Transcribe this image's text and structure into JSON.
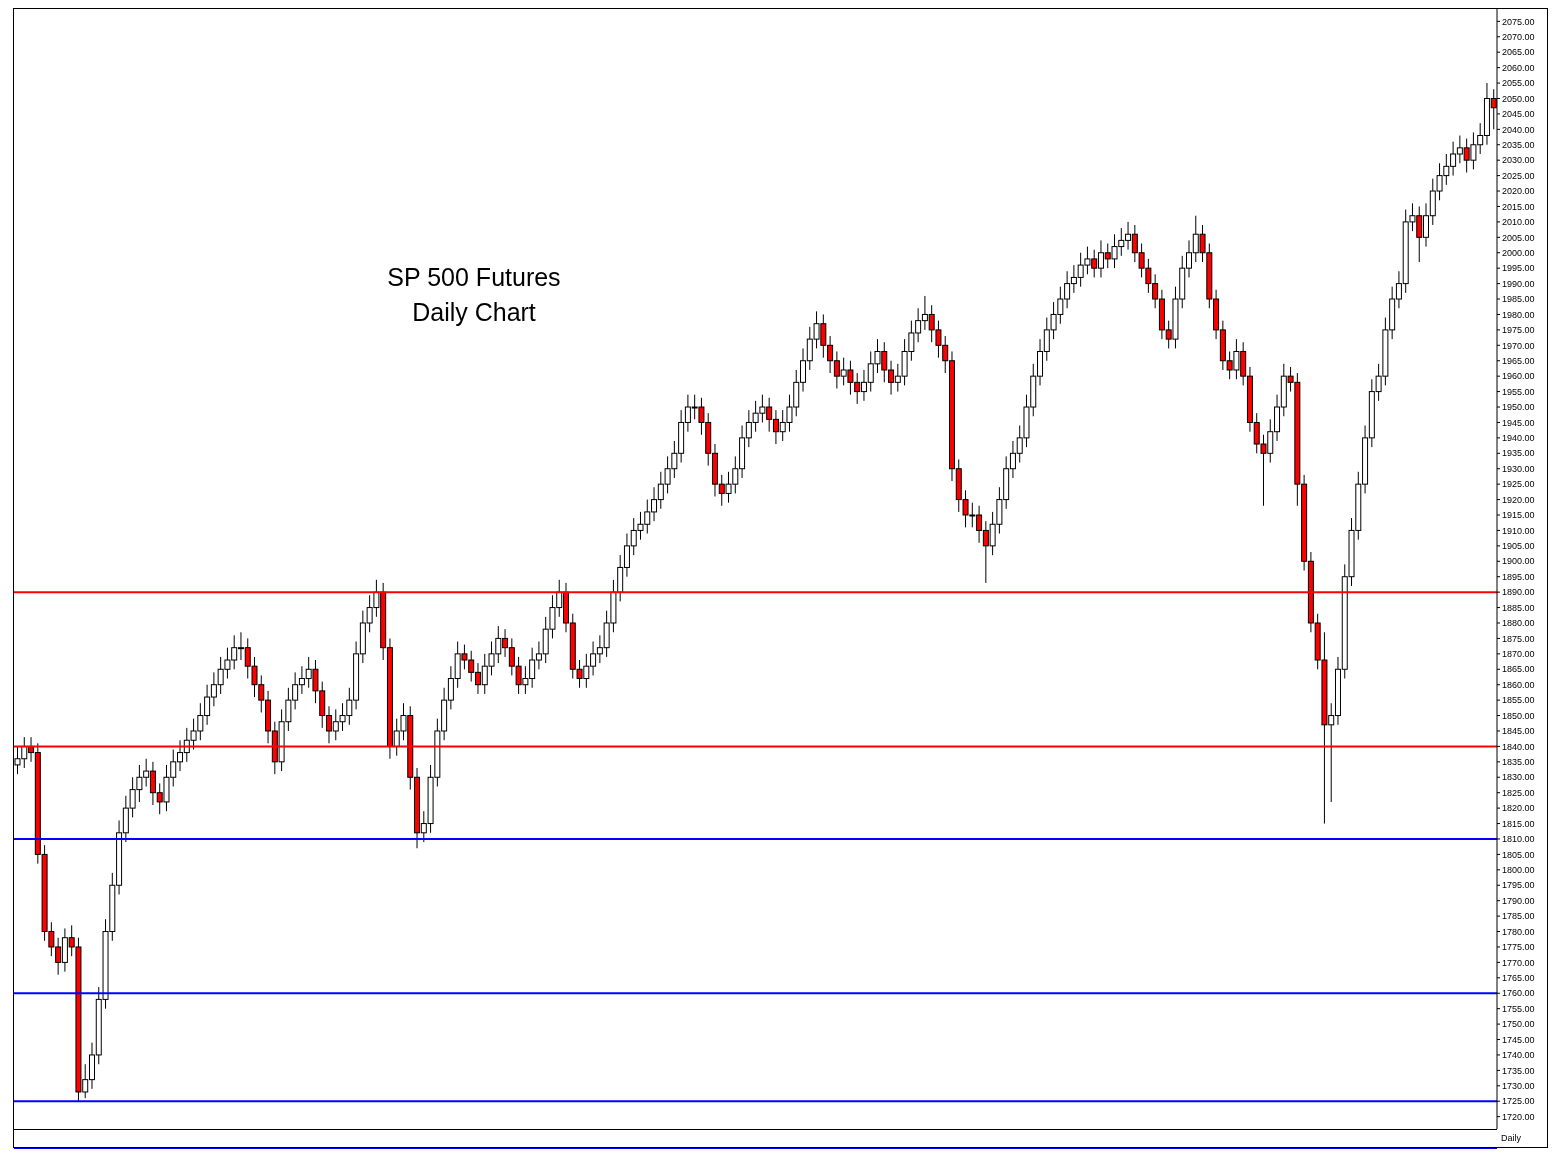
{
  "chart_data": {
    "type": "candlestick",
    "title": "SP 500 Futures",
    "subtitle": "Daily Chart",
    "annotations": [
      "Daily"
    ],
    "tick_labels": "y",
    "colors": [
      "#ffffff",
      "#ffffff",
      "#ff0000",
      "#ff0000",
      "#ff0000",
      "#ff0000",
      "#ff0000",
      "#ffffff",
      "#ff0000",
      "#ff0000",
      "#ffffff",
      "#ffffff",
      "#ffffff",
      "#ffffff",
      "#ffffff",
      "#ffffff",
      "#ffffff",
      "#ffffff",
      "#ffffff",
      "#ffffff",
      "#ff0000",
      "#ff0000",
      "#ffffff",
      "#ffffff",
      "#ffffff",
      "#ffffff",
      "#ffffff",
      "#ffffff",
      "#ffffff",
      "#ffffff",
      "#ffffff",
      "#ffffff",
      "#ffffff",
      "#ffffff",
      "#ff0000",
      "#ff0000",
      "#ff0000",
      "#ff0000",
      "#ff0000",
      "#ffffff",
      "#ffffff",
      "#ffffff",
      "#ffffff",
      "#ffffff",
      "#ff0000",
      "#ff0000",
      "#ff0000",
      "#ffffff",
      "#ffffff",
      "#ffffff",
      "#ffffff",
      "#ffffff",
      "#ffffff",
      "#ffffff",
      "#ff0000",
      "#ff0000",
      "#ffffff",
      "#ffffff",
      "#ff0000",
      "#ff0000",
      "#ffffff",
      "#ffffff",
      "#ffffff",
      "#ffffff",
      "#ffffff",
      "#ffffff",
      "#ff0000",
      "#ff0000",
      "#ff0000",
      "#ffffff",
      "#ffffff",
      "#ffffff",
      "#ff0000",
      "#ff0000",
      "#ff0000",
      "#ffffff",
      "#ffffff",
      "#ffffff",
      "#ffffff",
      "#ffffff",
      "#ffffff",
      "#ff0000",
      "#ff0000",
      "#ff0000",
      "#ffffff",
      "#ffffff",
      "#ffffff",
      "#ffffff",
      "#ffffff",
      "#ffffff",
      "#ffffff",
      "#ffffff",
      "#ffffff",
      "#ffffff",
      "#ffffff",
      "#ffffff",
      "#ffffff",
      "#ffffff",
      "#ffffff",
      "#ffffff",
      "#ffffff",
      "#ff0000",
      "#ff0000",
      "#ff0000",
      "#ff0000",
      "#ffffff",
      "#ffffff",
      "#ffffff",
      "#ffffff",
      "#ffffff",
      "#ffffff",
      "#ff0000",
      "#ff0000",
      "#ffffff",
      "#ffffff",
      "#ffffff",
      "#ffffff",
      "#ffffff",
      "#ffffff",
      "#ff0000",
      "#ff0000",
      "#ff0000",
      "#ffffff",
      "#ff0000",
      "#ff0000",
      "#ffffff",
      "#ffffff",
      "#ffffff",
      "#ff0000",
      "#ff0000",
      "#ffffff",
      "#ffffff",
      "#ffffff",
      "#ffffff",
      "#ffffff",
      "#ff0000",
      "#ff0000",
      "#ff0000",
      "#ff0000",
      "#ff0000",
      "#ff0000",
      "#ffffff",
      "#ff0000",
      "#ff0000",
      "#ffffff",
      "#ffffff",
      "#ffffff",
      "#ffffff",
      "#ffffff",
      "#ffffff",
      "#ffffff",
      "#ffffff",
      "#ffffff",
      "#ffffff",
      "#ffffff",
      "#ffffff",
      "#ffffff",
      "#ffffff",
      "#ffffff",
      "#ff0000",
      "#ffffff",
      "#ff0000",
      "#ffffff",
      "#ffffff",
      "#ffffff",
      "#ff0000",
      "#ff0000",
      "#ff0000",
      "#ff0000",
      "#ff0000",
      "#ff0000",
      "#ffffff",
      "#ffffff",
      "#ffffff",
      "#ffffff",
      "#ff0000",
      "#ff0000",
      "#ff0000",
      "#ff0000",
      "#ff0000",
      "#ffffff",
      "#ff0000",
      "#ff0000",
      "#ff0000",
      "#ff0000",
      "#ffffff",
      "#ffffff",
      "#ffffff",
      "#ff0000",
      "#ff0000",
      "#ff0000",
      "#ff0000",
      "#ff0000",
      "#ff0000",
      "#ffffff",
      "#ffffff",
      "#ffffff",
      "#ffffff",
      "#ffffff",
      "#ffffff",
      "#ffffff",
      "#ffffff",
      "#ffffff",
      "#ffffff",
      "#ffffff",
      "#ffffff",
      "#ffffff",
      "#ff0000",
      "#ffffff",
      "#ffffff",
      "#ffffff",
      "#ffffff",
      "#ffffff",
      "#ffffff",
      "#ff0000",
      "#ffffff",
      "#ffffff",
      "#ffffff",
      "#ff0000"
    ],
    "categories": [
      null,
      null,
      null,
      null,
      null,
      null,
      null,
      null,
      null,
      null,
      null,
      null,
      null,
      null,
      null,
      null,
      null,
      null,
      null,
      null,
      null,
      null,
      null,
      null,
      null,
      null,
      null,
      null,
      null,
      null,
      null,
      null,
      null,
      null,
      null,
      null,
      null,
      null,
      null,
      null,
      null,
      null,
      null,
      null,
      null,
      null,
      null,
      null,
      null,
      null,
      null,
      null,
      null,
      null,
      null,
      null,
      null,
      null,
      null,
      null,
      null,
      null,
      null,
      null,
      null,
      null,
      null,
      null,
      null,
      null,
      null,
      null,
      null,
      null,
      null,
      null,
      null,
      null,
      null,
      null,
      null,
      null,
      null,
      null,
      null,
      null,
      null,
      null,
      null,
      null,
      null,
      null,
      null,
      null,
      null,
      null,
      null,
      null,
      null,
      null,
      null,
      null,
      null,
      null,
      null,
      null,
      null,
      null,
      null,
      null,
      null,
      null,
      null,
      null,
      null,
      null,
      null,
      null,
      null,
      null,
      null,
      null,
      null,
      null,
      null,
      null,
      null,
      null,
      null,
      null,
      null,
      null,
      null,
      null,
      null,
      null,
      null,
      null,
      null,
      null,
      null,
      null,
      null,
      null,
      null,
      null,
      null,
      null,
      null,
      null,
      null,
      null,
      null,
      null,
      null,
      null,
      null,
      null,
      null,
      null,
      null,
      null,
      null,
      null,
      null,
      null,
      null,
      null,
      null,
      null,
      null,
      null,
      null,
      null,
      null,
      null,
      null,
      null,
      null,
      null,
      null,
      null,
      null,
      null,
      null,
      null,
      null,
      null,
      null,
      null,
      null,
      null,
      null,
      null,
      null,
      null,
      null,
      null,
      null,
      null,
      null,
      null,
      null,
      null,
      null,
      null,
      null,
      null,
      null,
      null,
      null,
      null,
      null,
      null,
      null,
      null,
      null,
      null,
      null
    ],
    "ohlc": [
      [
        1834,
        1840,
        1831,
        1836
      ],
      [
        1836,
        1843,
        1833,
        1840
      ],
      [
        1840,
        1843,
        1835,
        1838
      ],
      [
        1838,
        1841,
        1802,
        1805
      ],
      [
        1805,
        1808,
        1777,
        1780
      ],
      [
        1780,
        1783,
        1772,
        1775
      ],
      [
        1775,
        1778,
        1766,
        1770
      ],
      [
        1770,
        1781,
        1767,
        1778
      ],
      [
        1778,
        1782,
        1772,
        1775
      ],
      [
        1775,
        1778,
        1725,
        1728
      ],
      [
        1728,
        1737,
        1726,
        1732
      ],
      [
        1732,
        1744,
        1729,
        1740
      ],
      [
        1740,
        1762,
        1737,
        1758
      ],
      [
        1758,
        1784,
        1755,
        1780
      ],
      [
        1780,
        1799,
        1777,
        1795
      ],
      [
        1795,
        1816,
        1792,
        1812
      ],
      [
        1812,
        1824,
        1809,
        1820
      ],
      [
        1820,
        1830,
        1817,
        1826
      ],
      [
        1826,
        1834,
        1822,
        1830
      ],
      [
        1830,
        1836,
        1827,
        1832
      ],
      [
        1832,
        1835,
        1821,
        1825
      ],
      [
        1825,
        1828,
        1818,
        1822
      ],
      [
        1822,
        1834,
        1819,
        1830
      ],
      [
        1830,
        1839,
        1827,
        1835
      ],
      [
        1835,
        1842,
        1832,
        1838
      ],
      [
        1838,
        1846,
        1835,
        1842
      ],
      [
        1842,
        1849,
        1839,
        1845
      ],
      [
        1845,
        1854,
        1842,
        1850
      ],
      [
        1850,
        1860,
        1847,
        1856
      ],
      [
        1856,
        1864,
        1853,
        1860
      ],
      [
        1860,
        1869,
        1857,
        1865
      ],
      [
        1865,
        1872,
        1862,
        1868
      ],
      [
        1868,
        1876,
        1865,
        1872
      ],
      [
        1872,
        1877,
        1868,
        1872
      ],
      [
        1872,
        1875,
        1862,
        1866
      ],
      [
        1866,
        1869,
        1856,
        1860
      ],
      [
        1860,
        1863,
        1851,
        1855
      ],
      [
        1855,
        1858,
        1841,
        1845
      ],
      [
        1845,
        1848,
        1831,
        1835
      ],
      [
        1835,
        1852,
        1832,
        1848
      ],
      [
        1848,
        1859,
        1845,
        1855
      ],
      [
        1855,
        1864,
        1852,
        1860
      ],
      [
        1860,
        1866,
        1857,
        1862
      ],
      [
        1862,
        1869,
        1859,
        1865
      ],
      [
        1865,
        1868,
        1854,
        1858
      ],
      [
        1858,
        1861,
        1846,
        1850
      ],
      [
        1850,
        1853,
        1841,
        1845
      ],
      [
        1845,
        1852,
        1842,
        1848
      ],
      [
        1848,
        1854,
        1845,
        1850
      ],
      [
        1850,
        1859,
        1847,
        1855
      ],
      [
        1855,
        1874,
        1852,
        1870
      ],
      [
        1870,
        1884,
        1867,
        1880
      ],
      [
        1880,
        1889,
        1877,
        1885
      ],
      [
        1885,
        1894,
        1882,
        1890
      ],
      [
        1890,
        1893,
        1868,
        1872
      ],
      [
        1872,
        1875,
        1836,
        1840
      ],
      [
        1840,
        1849,
        1837,
        1845
      ],
      [
        1845,
        1854,
        1842,
        1850
      ],
      [
        1850,
        1853,
        1826,
        1830
      ],
      [
        1830,
        1833,
        1807,
        1812
      ],
      [
        1812,
        1819,
        1809,
        1815
      ],
      [
        1815,
        1834,
        1812,
        1830
      ],
      [
        1830,
        1849,
        1827,
        1845
      ],
      [
        1845,
        1859,
        1842,
        1855
      ],
      [
        1855,
        1866,
        1852,
        1862
      ],
      [
        1862,
        1874,
        1859,
        1870
      ],
      [
        1870,
        1873,
        1865,
        1868
      ],
      [
        1868,
        1871,
        1861,
        1864
      ],
      [
        1864,
        1867,
        1857,
        1860
      ],
      [
        1860,
        1870,
        1857,
        1866
      ],
      [
        1866,
        1874,
        1863,
        1870
      ],
      [
        1870,
        1879,
        1867,
        1875
      ],
      [
        1875,
        1878,
        1869,
        1872
      ],
      [
        1872,
        1875,
        1863,
        1866
      ],
      [
        1866,
        1869,
        1857,
        1860
      ],
      [
        1860,
        1866,
        1857,
        1862
      ],
      [
        1862,
        1872,
        1859,
        1868
      ],
      [
        1868,
        1874,
        1865,
        1870
      ],
      [
        1870,
        1882,
        1867,
        1878
      ],
      [
        1878,
        1889,
        1875,
        1885
      ],
      [
        1885,
        1894,
        1882,
        1890
      ],
      [
        1890,
        1893,
        1877,
        1880
      ],
      [
        1880,
        1883,
        1862,
        1865
      ],
      [
        1865,
        1868,
        1859,
        1862
      ],
      [
        1862,
        1870,
        1859,
        1866
      ],
      [
        1866,
        1874,
        1863,
        1870
      ],
      [
        1870,
        1876,
        1867,
        1872
      ],
      [
        1872,
        1884,
        1869,
        1880
      ],
      [
        1880,
        1894,
        1877,
        1890
      ],
      [
        1890,
        1902,
        1887,
        1898
      ],
      [
        1898,
        1909,
        1895,
        1905
      ],
      [
        1905,
        1914,
        1902,
        1910
      ],
      [
        1910,
        1916,
        1907,
        1912
      ],
      [
        1912,
        1920,
        1909,
        1916
      ],
      [
        1916,
        1924,
        1913,
        1920
      ],
      [
        1920,
        1929,
        1917,
        1925
      ],
      [
        1925,
        1934,
        1922,
        1930
      ],
      [
        1930,
        1939,
        1927,
        1935
      ],
      [
        1935,
        1949,
        1932,
        1945
      ],
      [
        1945,
        1954,
        1942,
        1950
      ],
      [
        1950,
        1954,
        1946,
        1950
      ],
      [
        1950,
        1953,
        1941,
        1945
      ],
      [
        1945,
        1948,
        1931,
        1935
      ],
      [
        1935,
        1938,
        1921,
        1925
      ],
      [
        1925,
        1928,
        1918,
        1922
      ],
      [
        1922,
        1929,
        1919,
        1925
      ],
      [
        1925,
        1934,
        1922,
        1930
      ],
      [
        1930,
        1944,
        1927,
        1940
      ],
      [
        1940,
        1949,
        1937,
        1945
      ],
      [
        1945,
        1952,
        1942,
        1948
      ],
      [
        1948,
        1954,
        1945,
        1950
      ],
      [
        1950,
        1953,
        1942,
        1946
      ],
      [
        1946,
        1949,
        1938,
        1942
      ],
      [
        1942,
        1949,
        1939,
        1945
      ],
      [
        1945,
        1954,
        1942,
        1950
      ],
      [
        1950,
        1962,
        1947,
        1958
      ],
      [
        1958,
        1969,
        1955,
        1965
      ],
      [
        1965,
        1976,
        1962,
        1972
      ],
      [
        1972,
        1981,
        1969,
        1977
      ],
      [
        1977,
        1980,
        1966,
        1970
      ],
      [
        1970,
        1973,
        1961,
        1965
      ],
      [
        1965,
        1968,
        1956,
        1960
      ],
      [
        1960,
        1966,
        1957,
        1962
      ],
      [
        1962,
        1965,
        1954,
        1958
      ],
      [
        1958,
        1961,
        1951,
        1955
      ],
      [
        1955,
        1962,
        1952,
        1958
      ],
      [
        1958,
        1968,
        1955,
        1964
      ],
      [
        1964,
        1972,
        1961,
        1968
      ],
      [
        1968,
        1971,
        1958,
        1962
      ],
      [
        1962,
        1965,
        1954,
        1958
      ],
      [
        1958,
        1964,
        1955,
        1960
      ],
      [
        1960,
        1972,
        1957,
        1968
      ],
      [
        1968,
        1978,
        1965,
        1974
      ],
      [
        1974,
        1982,
        1971,
        1978
      ],
      [
        1978,
        1986,
        1975,
        1980
      ],
      [
        1980,
        1983,
        1971,
        1975
      ],
      [
        1975,
        1978,
        1966,
        1970
      ],
      [
        1970,
        1973,
        1961,
        1965
      ],
      [
        1965,
        1968,
        1926,
        1930
      ],
      [
        1930,
        1933,
        1916,
        1920
      ],
      [
        1920,
        1923,
        1911,
        1915
      ],
      [
        1915,
        1919,
        1911,
        1915
      ],
      [
        1915,
        1918,
        1906,
        1910
      ],
      [
        1910,
        1913,
        1893,
        1905
      ],
      [
        1905,
        1916,
        1902,
        1912
      ],
      [
        1912,
        1924,
        1909,
        1920
      ],
      [
        1920,
        1934,
        1917,
        1930
      ],
      [
        1930,
        1939,
        1927,
        1935
      ],
      [
        1935,
        1944,
        1932,
        1940
      ],
      [
        1940,
        1954,
        1937,
        1950
      ],
      [
        1950,
        1964,
        1947,
        1960
      ],
      [
        1960,
        1972,
        1957,
        1968
      ],
      [
        1968,
        1979,
        1965,
        1975
      ],
      [
        1975,
        1984,
        1972,
        1980
      ],
      [
        1980,
        1989,
        1977,
        1985
      ],
      [
        1985,
        1994,
        1982,
        1990
      ],
      [
        1990,
        1996,
        1987,
        1992
      ],
      [
        1992,
        2000,
        1989,
        1996
      ],
      [
        1996,
        2002,
        1993,
        1998
      ],
      [
        1998,
        2001,
        1992,
        1995
      ],
      [
        1995,
        2004,
        1992,
        2000
      ],
      [
        2000,
        2003,
        1995,
        1998
      ],
      [
        1998,
        2006,
        1995,
        2002
      ],
      [
        2002,
        2008,
        1999,
        2004
      ],
      [
        2004,
        2010,
        2001,
        2006
      ],
      [
        2006,
        2009,
        1997,
        2000
      ],
      [
        2000,
        2003,
        1992,
        1995
      ],
      [
        1995,
        1998,
        1987,
        1990
      ],
      [
        1990,
        1993,
        1982,
        1985
      ],
      [
        1985,
        1988,
        1972,
        1975
      ],
      [
        1975,
        1978,
        1969,
        1972
      ],
      [
        1972,
        1989,
        1969,
        1985
      ],
      [
        1985,
        1999,
        1982,
        1995
      ],
      [
        1995,
        2004,
        1992,
        2000
      ],
      [
        2000,
        2012,
        1997,
        2006
      ],
      [
        2006,
        2009,
        1997,
        2000
      ],
      [
        2000,
        2003,
        1982,
        1985
      ],
      [
        1985,
        1988,
        1972,
        1975
      ],
      [
        1975,
        1978,
        1962,
        1965
      ],
      [
        1965,
        1968,
        1959,
        1962
      ],
      [
        1962,
        1972,
        1959,
        1968
      ],
      [
        1968,
        1971,
        1957,
        1960
      ],
      [
        1960,
        1963,
        1942,
        1945
      ],
      [
        1945,
        1948,
        1935,
        1938
      ],
      [
        1938,
        1941,
        1918,
        1935
      ],
      [
        1935,
        1946,
        1932,
        1942
      ],
      [
        1942,
        1954,
        1939,
        1950
      ],
      [
        1950,
        1964,
        1947,
        1960
      ],
      [
        1960,
        1963,
        1955,
        1958
      ],
      [
        1958,
        1961,
        1918,
        1925
      ],
      [
        1925,
        1928,
        1897,
        1900
      ],
      [
        1900,
        1903,
        1877,
        1880
      ],
      [
        1880,
        1883,
        1865,
        1868
      ],
      [
        1868,
        1877,
        1815,
        1847
      ],
      [
        1847,
        1854,
        1822,
        1850
      ],
      [
        1850,
        1869,
        1847,
        1865
      ],
      [
        1865,
        1899,
        1862,
        1895
      ],
      [
        1895,
        1914,
        1892,
        1910
      ],
      [
        1910,
        1929,
        1907,
        1925
      ],
      [
        1925,
        1944,
        1922,
        1940
      ],
      [
        1940,
        1959,
        1937,
        1955
      ],
      [
        1955,
        1964,
        1952,
        1960
      ],
      [
        1960,
        1979,
        1957,
        1975
      ],
      [
        1975,
        1989,
        1972,
        1985
      ],
      [
        1985,
        1994,
        1982,
        1990
      ],
      [
        1990,
        2014,
        1987,
        2010
      ],
      [
        2010,
        2016,
        2007,
        2012
      ],
      [
        2012,
        2015,
        1997,
        2005
      ],
      [
        2005,
        2016,
        2002,
        2012
      ],
      [
        2012,
        2024,
        2009,
        2020
      ],
      [
        2020,
        2029,
        2017,
        2025
      ],
      [
        2025,
        2032,
        2022,
        2028
      ],
      [
        2028,
        2036,
        2025,
        2032
      ],
      [
        2032,
        2038,
        2029,
        2034
      ],
      [
        2034,
        2037,
        2026,
        2030
      ],
      [
        2030,
        2039,
        2027,
        2035
      ],
      [
        2035,
        2042,
        2032,
        2038
      ],
      [
        2038,
        2055,
        2035,
        2050
      ],
      [
        2050,
        2053,
        2040,
        2047
      ]
    ],
    "ylim": [
      1716,
      2079
    ],
    "yticks": [
      {
        "value": 1720,
        "label": "1720.00"
      },
      {
        "value": 1725,
        "label": "1725.00"
      },
      {
        "value": 1730,
        "label": "1730.00"
      },
      {
        "value": 1735,
        "label": "1735.00"
      },
      {
        "value": 1740,
        "label": "1740.00"
      },
      {
        "value": 1745,
        "label": "1745.00"
      },
      {
        "value": 1750,
        "label": "1750.00"
      },
      {
        "value": 1755,
        "label": "1755.00"
      },
      {
        "value": 1760,
        "label": "1760.00"
      },
      {
        "value": 1765,
        "label": "1765.00"
      },
      {
        "value": 1770,
        "label": "1770.00"
      },
      {
        "value": 1775,
        "label": "1775.00"
      },
      {
        "value": 1780,
        "label": "1780.00"
      },
      {
        "value": 1785,
        "label": "1785.00"
      },
      {
        "value": 1790,
        "label": "1790.00"
      },
      {
        "value": 1795,
        "label": "1795.00"
      },
      {
        "value": 1800,
        "label": "1800.00"
      },
      {
        "value": 1805,
        "label": "1805.00"
      },
      {
        "value": 1810,
        "label": "1810.00"
      },
      {
        "value": 1815,
        "label": "1815.00"
      },
      {
        "value": 1820,
        "label": "1820.00"
      },
      {
        "value": 1825,
        "label": "1825.00"
      },
      {
        "value": 1830,
        "label": "1830.00"
      },
      {
        "value": 1835,
        "label": "1835.00"
      },
      {
        "value": 1840,
        "label": "1840.00"
      },
      {
        "value": 1845,
        "label": "1845.00"
      },
      {
        "value": 1850,
        "label": "1850.00"
      },
      {
        "value": 1855,
        "label": "1855.00"
      },
      {
        "value": 1860,
        "label": "1860.00"
      },
      {
        "value": 1865,
        "label": "1865.00"
      },
      {
        "value": 1870,
        "label": "1870.00"
      },
      {
        "value": 1875,
        "label": "1875.00"
      },
      {
        "value": 1880,
        "label": "1880.00"
      },
      {
        "value": 1885,
        "label": "1885.00"
      },
      {
        "value": 1890,
        "label": "1890.00"
      },
      {
        "value": 1895,
        "label": "1895.00"
      },
      {
        "value": 1900,
        "label": "1900.00"
      },
      {
        "value": 1905,
        "label": "1905.00"
      },
      {
        "value": 1910,
        "label": "1910.00"
      },
      {
        "value": 1915,
        "label": "1915.00"
      },
      {
        "value": 1920,
        "label": "1920.00"
      },
      {
        "value": 1925,
        "label": "1925.00"
      },
      {
        "value": 1930,
        "label": "1930.00"
      },
      {
        "value": 1935,
        "label": "1935.00"
      },
      {
        "value": 1940,
        "label": "1940.00"
      },
      {
        "value": 1945,
        "label": "1945.00"
      },
      {
        "value": 1950,
        "label": "1950.00"
      },
      {
        "value": 1955,
        "label": "1955.00"
      },
      {
        "value": 1960,
        "label": "1960.00"
      },
      {
        "value": 1965,
        "label": "1965.00"
      },
      {
        "value": 1970,
        "label": "1970.00"
      },
      {
        "value": 1975,
        "label": "1975.00"
      },
      {
        "value": 1980,
        "label": "1980.00"
      },
      {
        "value": 1985,
        "label": "1985.00"
      },
      {
        "value": 1990,
        "label": "1990.00"
      },
      {
        "value": 1995,
        "label": "1995.00"
      },
      {
        "value": 2000,
        "label": "2000.00"
      },
      {
        "value": 2005,
        "label": "2005.00"
      },
      {
        "value": 2010,
        "label": "2010.00"
      },
      {
        "value": 2015,
        "label": "2015.00"
      },
      {
        "value": 2020,
        "label": "2020.00"
      },
      {
        "value": 2025,
        "label": "2025.00"
      },
      {
        "value": 2030,
        "label": "2030.00"
      },
      {
        "value": 2035,
        "label": "2035.00"
      },
      {
        "value": 2040,
        "label": "2040.00"
      },
      {
        "value": 2045,
        "label": "2045.00"
      },
      {
        "value": 2050,
        "label": "2050.00"
      },
      {
        "value": 2055,
        "label": "2055.00"
      },
      {
        "value": 2060,
        "label": "2060.00"
      },
      {
        "value": 2065,
        "label": "2065.00"
      },
      {
        "value": 2070,
        "label": "2070.00"
      },
      {
        "value": 2075,
        "label": "2075.00"
      }
    ],
    "ref_lines": [
      {
        "axis": "y",
        "value": 1890,
        "color": "#ff0000"
      },
      {
        "axis": "y",
        "value": 1840,
        "color": "#ff0000"
      },
      {
        "axis": "y",
        "value": 1810,
        "color": "#0000ff"
      },
      {
        "axis": "y",
        "value": 1760,
        "color": "#0000ff"
      },
      {
        "axis": "y",
        "value": 1725,
        "color": "#0000ff"
      }
    ]
  }
}
